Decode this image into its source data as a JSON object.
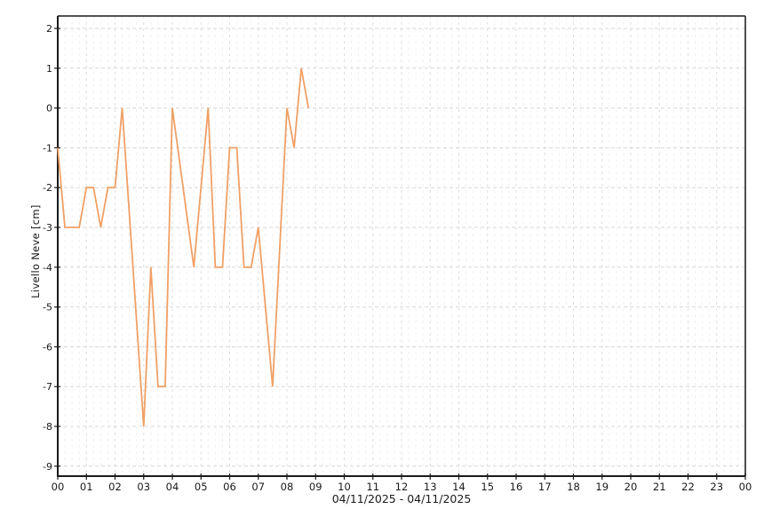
{
  "chart_data": {
    "type": "line",
    "ylabel": "Livello Neve [cm]",
    "xlabel": "04/11/2025 - 04/11/2025",
    "x_tick_labels": [
      "00",
      "01",
      "02",
      "03",
      "04",
      "05",
      "06",
      "07",
      "08",
      "09",
      "10",
      "11",
      "12",
      "13",
      "14",
      "15",
      "16",
      "17",
      "18",
      "19",
      "20",
      "21",
      "22",
      "23",
      "00"
    ],
    "y_tick_values": [
      2,
      1,
      0,
      -1,
      -2,
      -3,
      -4,
      -5,
      -6,
      -7,
      -8,
      -9
    ],
    "x_axis": {
      "unit": "hour_of_day",
      "range_hours": [
        0,
        24
      ],
      "minor_grid_minutes": 15
    },
    "ylim": [
      -9.3,
      2.3
    ],
    "grid": {
      "style": "dashed",
      "vertical_major": "every hour",
      "vertical_minor": "every 15 minutes",
      "horizontal": "every 1 cm"
    },
    "legend": "none",
    "series": [
      {
        "name": "Livello Neve",
        "color": "#f0a066",
        "points": [
          [
            "00:00",
            -1
          ],
          [
            "00:15",
            -3
          ],
          [
            "00:30",
            -3
          ],
          [
            "00:45",
            -3
          ],
          [
            "01:00",
            -2
          ],
          [
            "01:15",
            -2
          ],
          [
            "01:30",
            -3
          ],
          [
            "01:45",
            -2
          ],
          [
            "02:00",
            -2
          ],
          [
            "02:15",
            0
          ],
          [
            "03:00",
            -8
          ],
          [
            "03:15",
            -4
          ],
          [
            "03:30",
            -7
          ],
          [
            "03:45",
            -7
          ],
          [
            "04:00",
            0
          ],
          [
            "04:45",
            -4
          ],
          [
            "05:15",
            0
          ],
          [
            "05:30",
            -4
          ],
          [
            "05:45",
            -4
          ],
          [
            "06:00",
            -1
          ],
          [
            "06:15",
            -1
          ],
          [
            "06:30",
            -4
          ],
          [
            "06:45",
            -4
          ],
          [
            "07:00",
            -3
          ],
          [
            "07:30",
            -7
          ],
          [
            "08:00",
            0
          ],
          [
            "08:15",
            -1
          ],
          [
            "08:30",
            1
          ],
          [
            "08:45",
            0
          ]
        ]
      }
    ]
  },
  "colors": {
    "background": "#ffffff",
    "axis": "#1a1a1a",
    "border": "#3a3a3a",
    "grid_horizontal": "#d7d7d7",
    "grid_vertical_major": "#dedede",
    "grid_vertical_minor": "#f0f0f0",
    "text": "#1a1a1a"
  }
}
